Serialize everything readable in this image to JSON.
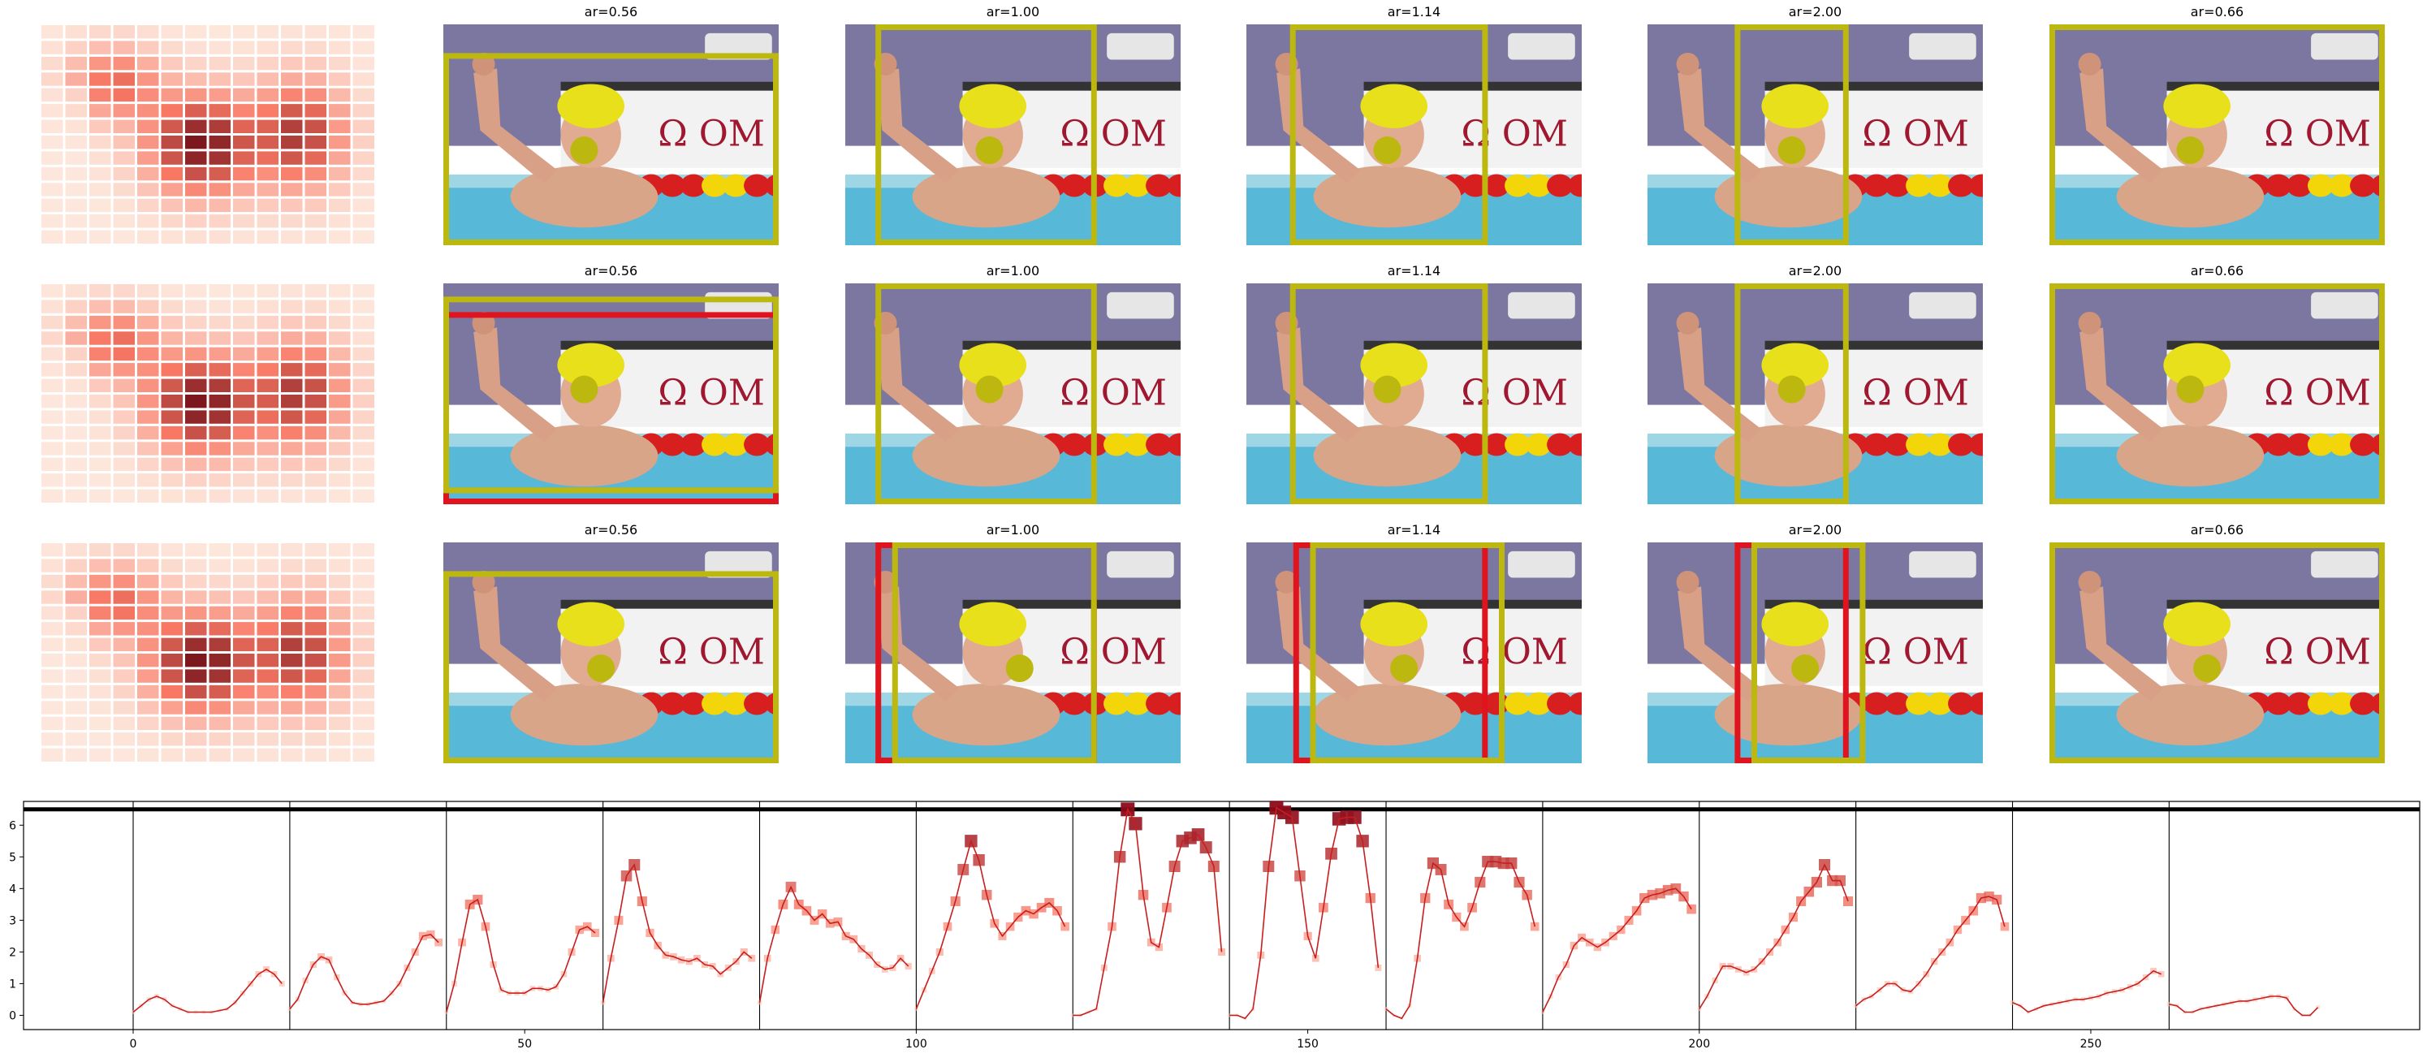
{
  "panels": {
    "rows": 3,
    "cols": 6,
    "titles": [
      [
        "",
        "ar=0.56",
        "ar=1.00",
        "ar=1.14",
        "ar=2.00",
        "ar=0.66"
      ],
      [
        "",
        "ar=0.56",
        "ar=1.00",
        "ar=1.14",
        "ar=2.00",
        "ar=0.66"
      ],
      [
        "",
        "ar=0.56",
        "ar=1.00",
        "ar=1.14",
        "ar=2.00",
        "ar=0.66"
      ]
    ],
    "photo_logo_text": "Ω OM",
    "colors": {
      "crop_box": "#bdb80f",
      "target_box": "#e0141e",
      "focus_dot": "#bdb80f",
      "heat_low": "#fde7dc",
      "heat_high": "#6b0a14"
    }
  },
  "chart_data": {
    "type": "line",
    "title": "",
    "xlabel": "",
    "ylabel": "",
    "xlim": [
      -14,
      292
    ],
    "ylim": [
      -0.45,
      6.75
    ],
    "xticks": [
      0,
      50,
      100,
      150,
      200,
      250
    ],
    "yticks": [
      0,
      1,
      2,
      3,
      4,
      5,
      6
    ],
    "separators_x": [
      0,
      20,
      40,
      60,
      80,
      100,
      120,
      140,
      160,
      180,
      200,
      220,
      240,
      260
    ],
    "threshold_y": 6.5,
    "grid": false,
    "legend": "none",
    "line_color": "#c81e1e",
    "marker": "square",
    "segments": [
      {
        "x": [
          0,
          1,
          2,
          3,
          4,
          5,
          6,
          7,
          8,
          9,
          10,
          11,
          12,
          13,
          14,
          15,
          16,
          17,
          18,
          19
        ],
        "y": [
          0.1,
          0.3,
          0.5,
          0.6,
          0.5,
          0.3,
          0.2,
          0.1,
          0.1,
          0.1,
          0.1,
          0.15,
          0.2,
          0.4,
          0.7,
          1.0,
          1.3,
          1.45,
          1.3,
          1.0
        ]
      },
      {
        "x": [
          20,
          21,
          22,
          23,
          24,
          25,
          26,
          27,
          28,
          29,
          30,
          31,
          32,
          33,
          34,
          35,
          36,
          37,
          38,
          39
        ],
        "y": [
          0.2,
          0.5,
          1.1,
          1.6,
          1.85,
          1.75,
          1.2,
          0.7,
          0.4,
          0.35,
          0.35,
          0.4,
          0.45,
          0.7,
          1.0,
          1.5,
          2.0,
          2.5,
          2.55,
          2.3
        ]
      },
      {
        "x": [
          40,
          41,
          42,
          43,
          44,
          45,
          46,
          47,
          48,
          49,
          50,
          51,
          52,
          53,
          54,
          55,
          56,
          57,
          58,
          59
        ],
        "y": [
          0.1,
          1.0,
          2.3,
          3.5,
          3.65,
          2.8,
          1.6,
          0.8,
          0.7,
          0.7,
          0.7,
          0.85,
          0.85,
          0.8,
          0.9,
          1.3,
          2.0,
          2.7,
          2.8,
          2.6
        ]
      },
      {
        "x": [
          60,
          61,
          62,
          63,
          64,
          65,
          66,
          67,
          68,
          69,
          70,
          71,
          72,
          73,
          74,
          75,
          76,
          77,
          78,
          79
        ],
        "y": [
          0.4,
          1.8,
          3.0,
          4.4,
          4.75,
          3.6,
          2.6,
          2.2,
          1.9,
          1.85,
          1.75,
          1.7,
          1.8,
          1.6,
          1.55,
          1.3,
          1.5,
          1.7,
          2.0,
          1.8
        ]
      },
      {
        "x": [
          80,
          81,
          82,
          83,
          84,
          85,
          86,
          87,
          88,
          89,
          90,
          91,
          92,
          93,
          94,
          95,
          96,
          97,
          98,
          99
        ],
        "y": [
          0.4,
          1.8,
          2.7,
          3.5,
          4.05,
          3.5,
          3.3,
          3.0,
          3.2,
          2.9,
          2.95,
          2.5,
          2.4,
          2.1,
          1.9,
          1.6,
          1.45,
          1.5,
          1.8,
          1.55
        ]
      },
      {
        "x": [
          100,
          101,
          102,
          103,
          104,
          105,
          106,
          107,
          108,
          109,
          110,
          111,
          112,
          113,
          114,
          115,
          116,
          117,
          118,
          119
        ],
        "y": [
          0.2,
          0.8,
          1.4,
          2.0,
          2.8,
          3.6,
          4.6,
          5.5,
          4.9,
          3.8,
          2.9,
          2.5,
          2.8,
          3.1,
          3.3,
          3.2,
          3.4,
          3.55,
          3.3,
          2.8
        ]
      },
      {
        "x": [
          120,
          121,
          122,
          123,
          124,
          125,
          126,
          127,
          128,
          129,
          130,
          131,
          132,
          133,
          134,
          135,
          136,
          137,
          138,
          139
        ],
        "y": [
          0.0,
          0.0,
          0.1,
          0.2,
          1.5,
          2.8,
          5.0,
          6.5,
          6.05,
          3.8,
          2.3,
          2.15,
          3.4,
          4.7,
          5.5,
          5.6,
          5.7,
          5.3,
          4.7,
          2.0
        ]
      },
      {
        "x": [
          140,
          141,
          142,
          143,
          144,
          145,
          146,
          147,
          148,
          149,
          150,
          151,
          152,
          153,
          154,
          155,
          156,
          157,
          158,
          159
        ],
        "y": [
          0.0,
          0.0,
          -0.1,
          0.2,
          1.9,
          4.7,
          6.55,
          6.4,
          6.25,
          4.4,
          2.5,
          1.8,
          3.4,
          5.1,
          6.2,
          6.25,
          6.25,
          5.5,
          3.7,
          1.5
        ]
      },
      {
        "x": [
          160,
          161,
          162,
          163,
          164,
          165,
          166,
          167,
          168,
          169,
          170,
          171,
          172,
          173,
          174,
          175,
          176,
          177,
          178,
          179
        ],
        "y": [
          0.2,
          0.0,
          -0.1,
          0.3,
          1.8,
          3.7,
          4.8,
          4.6,
          3.5,
          3.1,
          2.8,
          3.4,
          4.2,
          4.85,
          4.85,
          4.8,
          4.8,
          4.2,
          3.8,
          2.8
        ]
      },
      {
        "x": [
          180,
          181,
          182,
          183,
          184,
          185,
          186,
          187,
          188,
          189,
          190,
          191,
          192,
          193,
          194,
          195,
          196,
          197,
          198,
          199
        ],
        "y": [
          0.1,
          0.6,
          1.2,
          1.6,
          2.2,
          2.45,
          2.3,
          2.15,
          2.3,
          2.5,
          2.7,
          3.0,
          3.3,
          3.7,
          3.8,
          3.85,
          3.95,
          4.0,
          3.75,
          3.35
        ]
      },
      {
        "x": [
          200,
          201,
          202,
          203,
          204,
          205,
          206,
          207,
          208,
          209,
          210,
          211,
          212,
          213,
          214,
          215,
          216,
          217,
          218,
          219
        ],
        "y": [
          0.2,
          0.6,
          1.1,
          1.55,
          1.55,
          1.45,
          1.35,
          1.45,
          1.7,
          2.0,
          2.3,
          2.7,
          3.1,
          3.6,
          3.9,
          4.2,
          4.75,
          4.25,
          4.25,
          3.6
        ]
      },
      {
        "x": [
          220,
          221,
          222,
          223,
          224,
          225,
          226,
          227,
          228,
          229,
          230,
          231,
          232,
          233,
          234,
          235,
          236,
          237,
          238,
          239
        ],
        "y": [
          0.3,
          0.5,
          0.6,
          0.8,
          1.0,
          1.0,
          0.8,
          0.75,
          1.0,
          1.3,
          1.7,
          2.0,
          2.3,
          2.7,
          3.0,
          3.3,
          3.7,
          3.75,
          3.65,
          2.8
        ]
      },
      {
        "x": [
          240,
          241,
          242,
          243,
          244,
          245,
          246,
          247,
          248,
          249,
          250,
          251,
          252,
          253,
          254,
          255,
          256,
          257,
          258,
          259
        ],
        "y": [
          0.4,
          0.3,
          0.1,
          0.2,
          0.3,
          0.35,
          0.4,
          0.45,
          0.5,
          0.5,
          0.55,
          0.6,
          0.7,
          0.75,
          0.8,
          0.9,
          1.0,
          1.2,
          1.4,
          1.3
        ]
      },
      {
        "x": [
          260,
          261,
          262,
          263,
          264,
          265,
          266,
          267,
          268,
          269,
          270,
          271,
          272,
          273,
          274,
          275,
          276,
          277,
          278,
          279
        ],
        "y": [
          0.35,
          0.3,
          0.1,
          0.1,
          0.2,
          0.25,
          0.3,
          0.35,
          0.4,
          0.45,
          0.45,
          0.5,
          0.55,
          0.6,
          0.6,
          0.55,
          0.2,
          0.0,
          0.0,
          0.25
        ]
      }
    ]
  }
}
